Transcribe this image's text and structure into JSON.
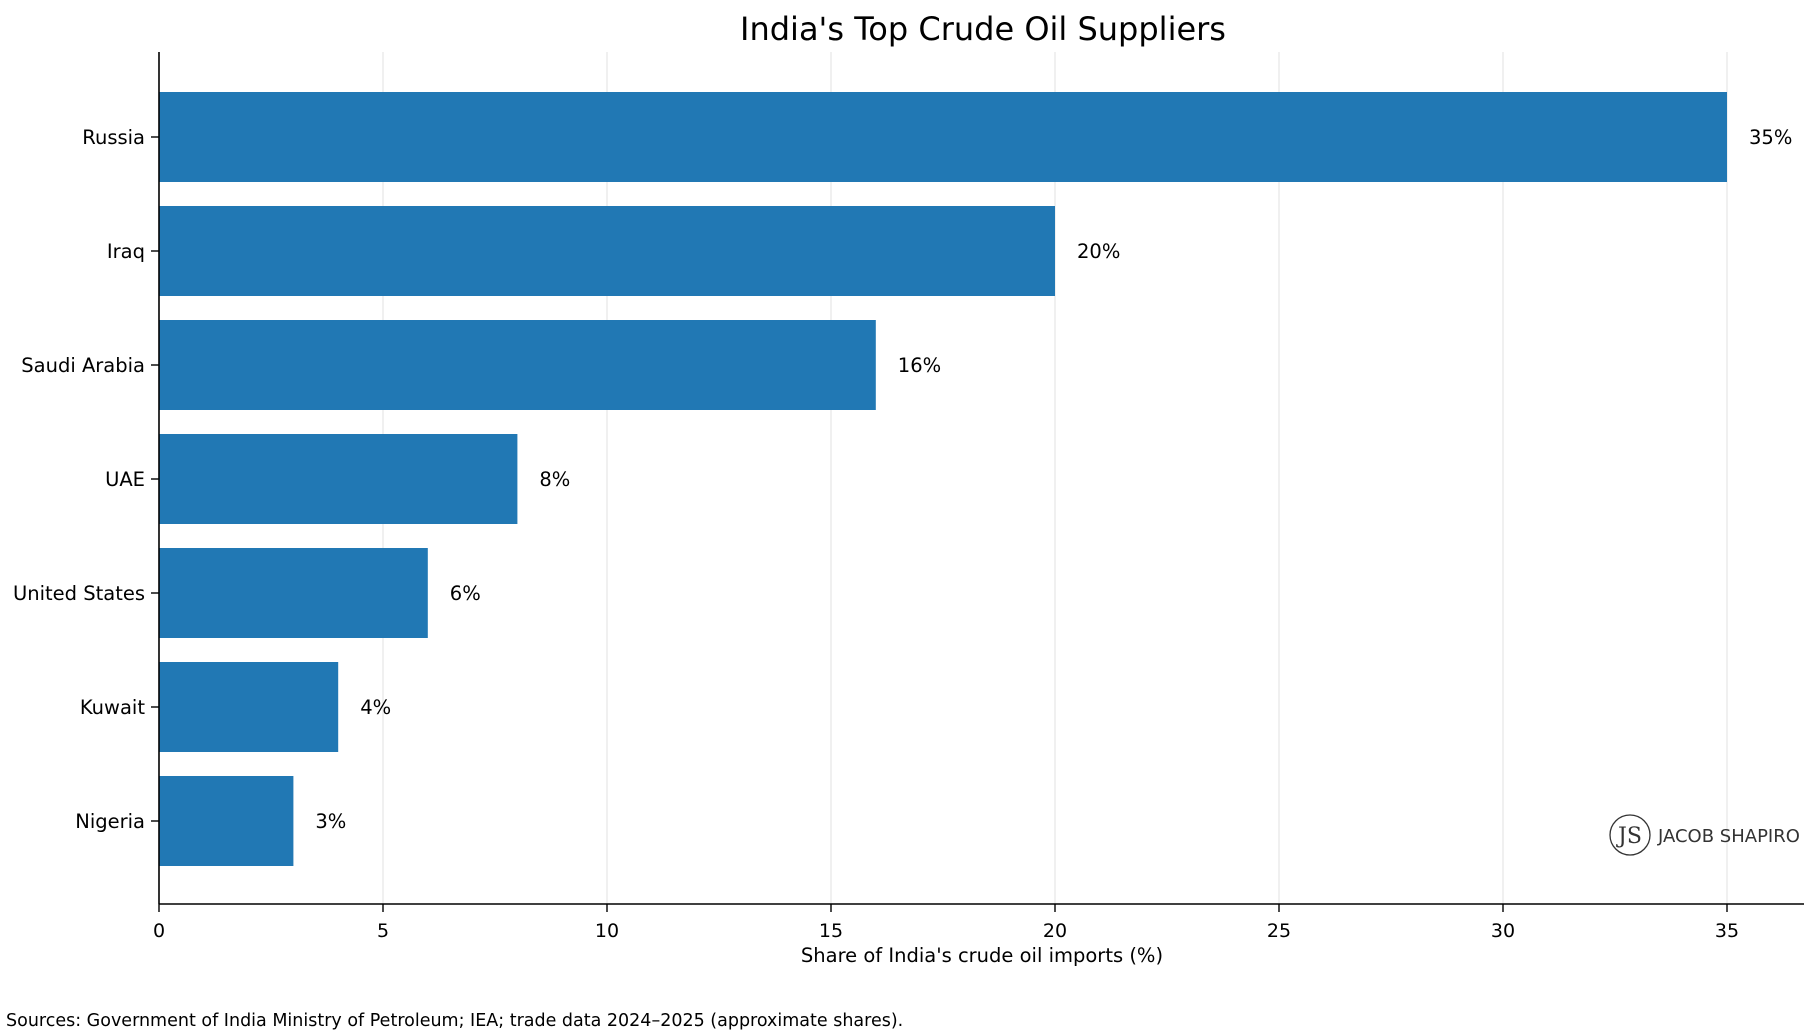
{
  "chart_data": {
    "type": "bar",
    "orientation": "horizontal",
    "title": "India's Top Crude Oil Suppliers",
    "xlabel": "Share of India's crude oil imports (%)",
    "ylabel": "",
    "categories": [
      "Russia",
      "Iraq",
      "Saudi Arabia",
      "UAE",
      "United States",
      "Kuwait",
      "Nigeria"
    ],
    "values": [
      35,
      20,
      16,
      8,
      6,
      4,
      3
    ],
    "data_labels": [
      "35%",
      "20%",
      "16%",
      "8%",
      "6%",
      "4%",
      "3%"
    ],
    "xlim": [
      0,
      36.7
    ],
    "xticks": [
      0,
      5,
      10,
      15,
      20,
      25,
      30,
      35
    ],
    "grid": "vertical",
    "bar_color": "#2178b4"
  },
  "watermark": {
    "monogram": "JS",
    "text": "JACOB SHAPIRO"
  },
  "source_note": "Sources: Government of India Ministry of Petroleum; IEA; trade data 2024–2025 (approximate shares)."
}
